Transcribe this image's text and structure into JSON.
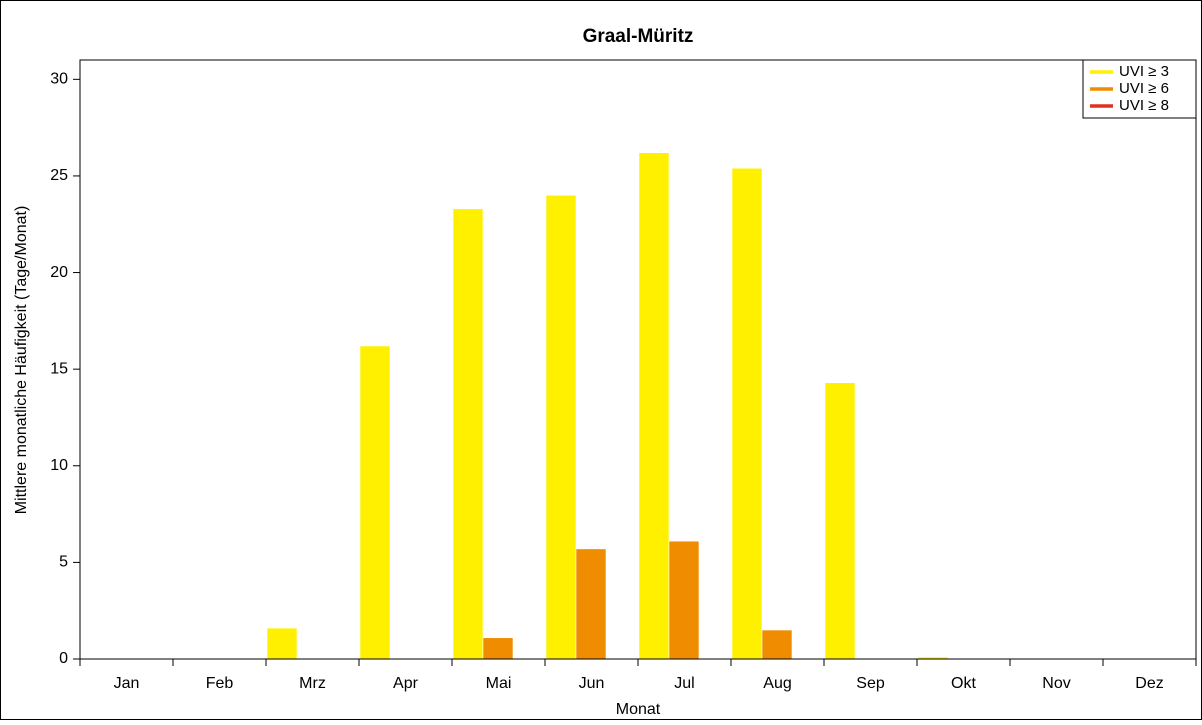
{
  "chart_data": {
    "type": "bar",
    "title": "Graal-Müritz",
    "x_label": "Monat",
    "y_label": "Mittlere monatliche Häufigkeit (Tage/Monat)",
    "categories": [
      "Jan",
      "Feb",
      "Mrz",
      "Apr",
      "Mai",
      "Jun",
      "Jul",
      "Aug",
      "Sep",
      "Okt",
      "Nov",
      "Dez"
    ],
    "series": [
      {
        "name": "UVI ≥ 3",
        "color": "#fff000",
        "values": [
          0,
          0,
          1.6,
          16.2,
          23.3,
          24.0,
          26.2,
          25.4,
          14.3,
          0.1,
          0,
          0
        ]
      },
      {
        "name": "UVI ≥ 6",
        "color": "#f08c00",
        "values": [
          0,
          0,
          0,
          0,
          1.1,
          5.7,
          6.1,
          1.5,
          0,
          0,
          0,
          0
        ]
      },
      {
        "name": "UVI ≥ 8",
        "color": "#e0301e",
        "values": [
          0,
          0,
          0,
          0,
          0,
          0,
          0,
          0,
          0,
          0,
          0,
          0
        ]
      }
    ],
    "ylim": [
      0,
      31
    ],
    "yticks": [
      0,
      5,
      10,
      15,
      20,
      25,
      30
    ],
    "legend": "top-right"
  }
}
